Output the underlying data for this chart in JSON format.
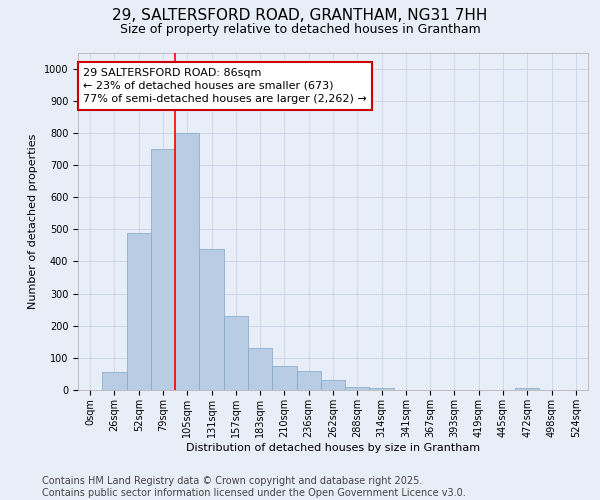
{
  "title": "29, SALTERSFORD ROAD, GRANTHAM, NG31 7HH",
  "subtitle": "Size of property relative to detached houses in Grantham",
  "xlabel": "Distribution of detached houses by size in Grantham",
  "ylabel": "Number of detached properties",
  "bar_values": [
    0,
    55,
    490,
    750,
    800,
    440,
    230,
    130,
    75,
    60,
    30,
    10,
    5,
    0,
    0,
    0,
    0,
    0,
    5,
    0,
    0
  ],
  "bar_labels": [
    "0sqm",
    "26sqm",
    "52sqm",
    "79sqm",
    "105sqm",
    "131sqm",
    "157sqm",
    "183sqm",
    "210sqm",
    "236sqm",
    "262sqm",
    "288sqm",
    "314sqm",
    "341sqm",
    "367sqm",
    "393sqm",
    "419sqm",
    "445sqm",
    "472sqm",
    "498sqm",
    "524sqm"
  ],
  "bar_color": "#b8cce4",
  "bar_edge_color": "#7fa7c9",
  "red_line_x": 3.5,
  "annotation_text": "29 SALTERSFORD ROAD: 86sqm\n← 23% of detached houses are smaller (673)\n77% of semi-detached houses are larger (2,262) →",
  "annotation_box_color": "#cc0000",
  "ylim": [
    0,
    1050
  ],
  "yticks": [
    0,
    100,
    200,
    300,
    400,
    500,
    600,
    700,
    800,
    900,
    1000
  ],
  "grid_color": "#c8d4e8",
  "background_color": "#e8eef8",
  "footer_line1": "Contains HM Land Registry data © Crown copyright and database right 2025.",
  "footer_line2": "Contains public sector information licensed under the Open Government Licence v3.0.",
  "title_fontsize": 11,
  "subtitle_fontsize": 9,
  "annotation_fontsize": 8,
  "ylabel_fontsize": 8,
  "xlabel_fontsize": 8,
  "footer_fontsize": 7,
  "tick_fontsize": 7
}
